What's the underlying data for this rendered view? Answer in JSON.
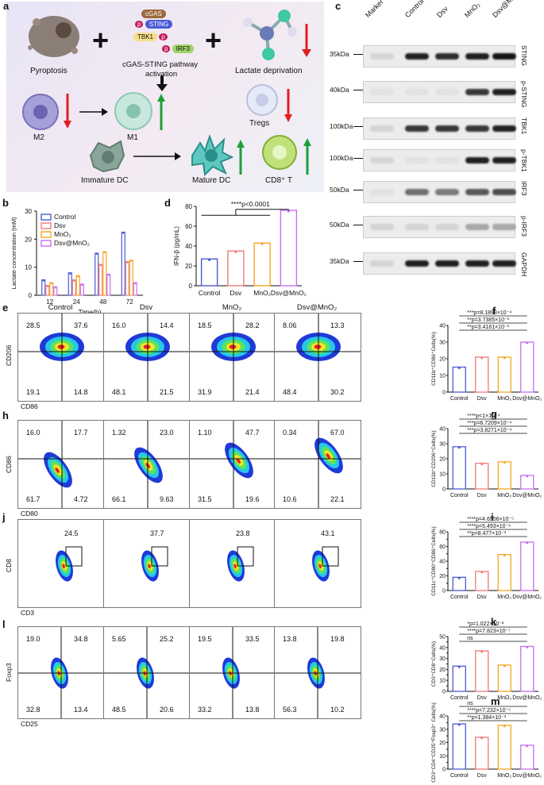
{
  "panel_a": {
    "letter": "a",
    "pyroptosis": "Pyroptosis",
    "pathway_line1": "cGAS-STING pathway",
    "pathway_line2": "activation",
    "lactate": "Lactate deprivation",
    "m2": "M2",
    "m1": "M1",
    "tregs": "Tregs",
    "immature_dc": "Immature DC",
    "mature_dc": "Mature DC",
    "cd8t": "CD8⁺ T",
    "node_cgas": "cGAS",
    "node_sting": "STING",
    "node_tbk1": "TBK1",
    "node_irf3": "IRF3",
    "node_p": "p"
  },
  "panel_b": {
    "letter": "b",
    "chart_data": {
      "type": "bar",
      "categories": [
        "12",
        "24",
        "48",
        "72"
      ],
      "series": [
        {
          "name": "Control",
          "values": [
            5.5,
            8.0,
            15.0,
            22.5
          ]
        },
        {
          "name": "Dsv",
          "values": [
            3.5,
            5.5,
            11.0,
            12.0
          ]
        },
        {
          "name": "MnO₂",
          "values": [
            4.5,
            7.0,
            15.5,
            12.5
          ]
        },
        {
          "name": "Dsv@MnO₂",
          "values": [
            3.0,
            4.0,
            7.5,
            4.5
          ]
        }
      ],
      "xlabel": "Time(h)",
      "ylabel": "Lactate concentration (mM)",
      "ylim": [
        0,
        30
      ],
      "yticks": [
        "0",
        "10",
        "20",
        "30"
      ],
      "colors": [
        "#4a5bd4",
        "#f07b7b",
        "#f5a623",
        "#c76ef0"
      ]
    }
  },
  "panel_c": {
    "letter": "c",
    "lanes": [
      "Marker",
      "Control",
      "Dsv",
      "MnO₂",
      "Dsv@MnO₂"
    ],
    "blots": [
      {
        "size": "35kDa",
        "label": "STING"
      },
      {
        "size": "40kDa",
        "label": "p-STING"
      },
      {
        "size": "100kDa",
        "label": "TBK1"
      },
      {
        "size": "100kDa",
        "label": "p-TBK1"
      },
      {
        "size": "50kDa",
        "label": "IRF3"
      },
      {
        "size": "50kDa",
        "label": "p-IRF3"
      },
      {
        "size": "35kDa",
        "label": "GAPDH"
      }
    ]
  },
  "panel_d": {
    "letter": "d",
    "chart_data": {
      "type": "bar",
      "categories": [
        "Control",
        "Dsv",
        "MnO₂",
        "Dsv@MnO₂"
      ],
      "values": [
        27,
        35,
        43,
        76
      ],
      "ylabel": "IFN-β (pg/mL)",
      "ylim": [
        0,
        80
      ],
      "yticks": [
        "0",
        "20",
        "40",
        "60",
        "80"
      ],
      "annotation": "****p<0.0001",
      "colors": [
        "#4a5bd4",
        "#f07b7b",
        "#f5a623",
        "#c76ef0"
      ]
    }
  },
  "flow_columns": [
    "Control",
    "Dsv",
    "MnO₂",
    "Dsv@MnO₂"
  ],
  "panel_e": {
    "letter": "e",
    "ylabel": "CD206",
    "xlabel": "CD86",
    "quads": [
      [
        "28.5",
        "37.6",
        "19.1",
        "14.8"
      ],
      [
        "16.0",
        "14.4",
        "48.1",
        "21.5"
      ],
      [
        "18.5",
        "28.2",
        "31.9",
        "21.4"
      ],
      [
        "8.06",
        "13.3",
        "48.4",
        "30.2"
      ]
    ]
  },
  "panel_h": {
    "letter": "h",
    "ylabel": "CD86",
    "xlabel": "CD80",
    "quads": [
      [
        "16.0",
        "17.7",
        "61.7",
        "4.72"
      ],
      [
        "1.32",
        "23.0",
        "66.1",
        "9.63"
      ],
      [
        "1.10",
        "47.7",
        "31.5",
        "19.6"
      ],
      [
        "0.34",
        "67.0",
        "10.6",
        "22.1"
      ]
    ]
  },
  "panel_j": {
    "letter": "j",
    "ylabel": "CD8",
    "xlabel": "CD3",
    "gates": [
      "24.5",
      "37.7",
      "23.8",
      "43.1"
    ]
  },
  "panel_l": {
    "letter": "l",
    "ylabel": "Foxp3",
    "xlabel": "CD25",
    "quads": [
      [
        "19.0",
        "34.8",
        "32.8",
        "13.4"
      ],
      [
        "5.65",
        "25.2",
        "48.5",
        "20.6"
      ],
      [
        "19.5",
        "33.5",
        "33.2",
        "13.8"
      ],
      [
        "13.8",
        "19.8",
        "56.3",
        "10.2"
      ]
    ]
  },
  "side_charts": {
    "categories": [
      "Control",
      "Dsv",
      "MnO₂",
      "Dsv@MnO₂"
    ],
    "colors": [
      "#4a5bd4",
      "#f07b7b",
      "#f5a623",
      "#c76ef0"
    ],
    "f": {
      "letter": "f",
      "chart_data": {
        "type": "bar",
        "values": [
          15,
          21,
          21,
          30
        ],
        "ylabel": "CD11b⁺CD86⁺Cells(%)",
        "ylim": [
          0,
          40
        ],
        "yticks": [
          "0",
          "10",
          "20",
          "30",
          "40"
        ],
        "annotations": [
          "***p=8.1893×10⁻⁴",
          "**p=3.7385×10⁻³",
          "**p=3.4181×10⁻³"
        ]
      }
    },
    "g": {
      "letter": "g",
      "chart_data": {
        "type": "bar",
        "values": [
          28,
          17,
          18,
          9
        ],
        "ylabel": "CD11b⁺CD206⁺Cells(%)",
        "ylim": [
          0,
          40
        ],
        "yticks": [
          "0",
          "10",
          "20",
          "30",
          "40"
        ],
        "annotations": [
          "****p<1×10⁻⁴",
          "***p=6.7209×10⁻⁴",
          "***p=3.8271×10⁻⁴"
        ]
      }
    },
    "i": {
      "letter": "i",
      "chart_data": {
        "type": "bar",
        "values": [
          18,
          26,
          49,
          66
        ],
        "ylabel": "CD11c⁺CD80⁺CD86⁺Cells(%)",
        "ylim": [
          0,
          80
        ],
        "yticks": [
          "0",
          "10",
          "20",
          "30",
          "40",
          "50",
          "60",
          "70",
          "80"
        ],
        "annotations": [
          "****p=4.6556×10⁻⁵",
          "****p=5.493×10⁻⁶",
          "**p=8.477×10⁻³"
        ]
      }
    },
    "k": {
      "letter": "k",
      "chart_data": {
        "type": "bar",
        "values": [
          23,
          37,
          24,
          41
        ],
        "ylabel": "CD3⁺CD8⁺Cells(%)",
        "ylim": [
          0,
          50
        ],
        "yticks": [
          "0",
          "5",
          "10",
          "15",
          "20",
          "25",
          "30",
          "35",
          "40",
          "45",
          "50"
        ],
        "annotations": [
          "*p=1.022×10⁻²",
          "****p=7.823×10⁻⁷",
          "ns"
        ]
      }
    },
    "m": {
      "letter": "m",
      "chart_data": {
        "type": "bar",
        "values": [
          34,
          24,
          33,
          18
        ],
        "ylabel": "CD3⁺CD4⁺CD25⁺Foxp3⁺ Cells(%)",
        "ylim": [
          0,
          40
        ],
        "yticks": [
          "0",
          "5",
          "10",
          "15",
          "20",
          "25",
          "30",
          "35",
          "40"
        ],
        "annotations": [
          "ns",
          "****p=7.232×10⁻⁵",
          "**p=1.384×10⁻³"
        ]
      }
    }
  }
}
